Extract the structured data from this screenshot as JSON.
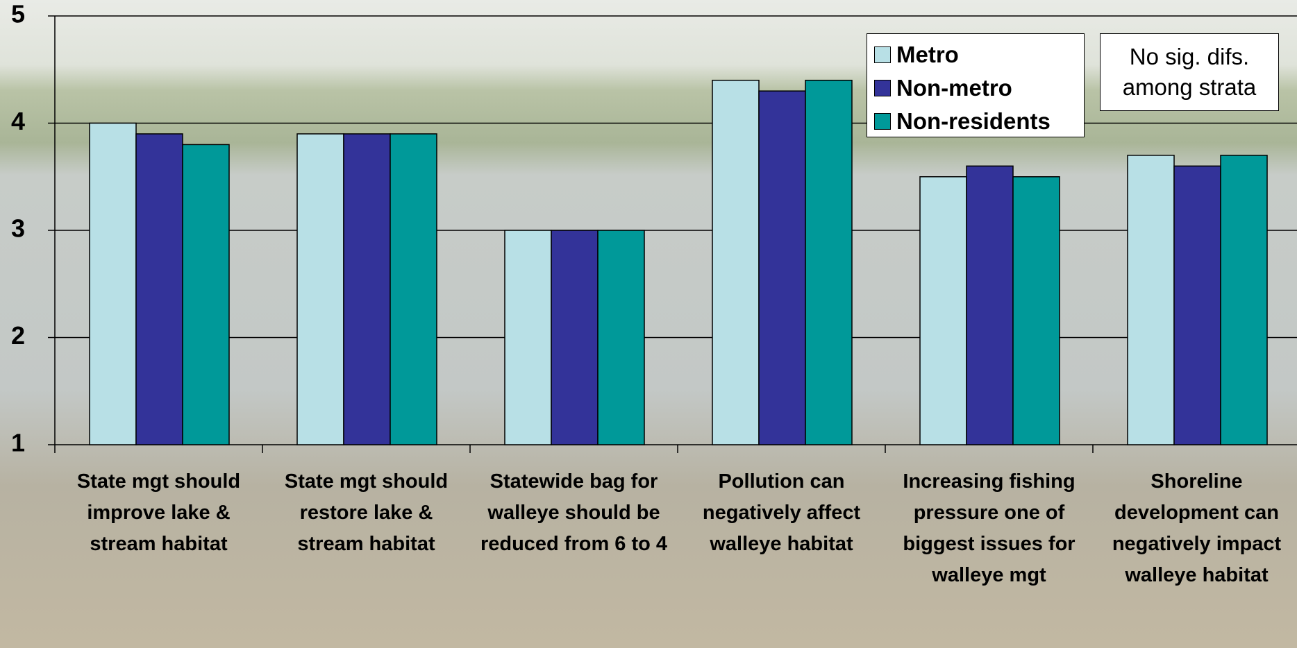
{
  "chart_data": {
    "type": "bar",
    "categories": [
      "State mgt should improve lake & stream habitat",
      "State mgt should restore lake & stream habitat",
      "Statewide bag for walleye should be reduced from 6 to 4",
      "Pollution can negatively affect walleye habitat",
      "Increasing fishing pressure one of biggest issues for walleye mgt",
      "Shoreline development can negatively impact walleye habitat"
    ],
    "series": [
      {
        "name": "Metro",
        "color": "#b8e0e6",
        "values": [
          4.0,
          3.9,
          3.0,
          4.4,
          3.5,
          3.7
        ]
      },
      {
        "name": "Non-metro",
        "color": "#333399",
        "values": [
          3.9,
          3.9,
          3.0,
          4.3,
          3.6,
          3.6
        ]
      },
      {
        "name": "Non-residents",
        "color": "#009999",
        "values": [
          3.8,
          3.9,
          3.0,
          4.4,
          3.5,
          3.7
        ]
      }
    ],
    "ylim": [
      1,
      5
    ],
    "yticks": [
      1,
      2,
      3,
      4,
      5
    ],
    "grid": true,
    "annotation": "No sig. difs. among strata"
  }
}
